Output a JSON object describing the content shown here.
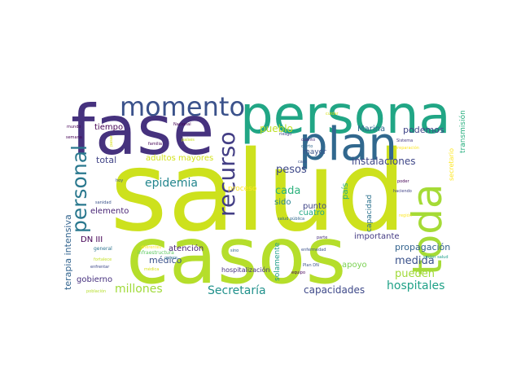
{
  "words": [
    {
      "text": "salud",
      "color": "#cde11d"
    },
    {
      "text": "casos",
      "color": "#b5de2b"
    },
    {
      "text": "fase",
      "color": "#46327e"
    },
    {
      "text": "persona",
      "color": "#21a685"
    },
    {
      "text": "plan",
      "color": "#31688e"
    },
    {
      "text": "toda",
      "color": "#a5db36"
    },
    {
      "text": "momento",
      "color": "#3b528b"
    },
    {
      "text": "recurso",
      "color": "#433e85"
    },
    {
      "text": "personal",
      "color": "#2a788e"
    },
    {
      "text": "epidemia",
      "color": "#24868e"
    },
    {
      "text": "hospitales",
      "color": "#1fa187"
    },
    {
      "text": "millones",
      "color": "#a0da39"
    },
    {
      "text": "Secretaría",
      "color": "#21918c"
    },
    {
      "text": "capacidades",
      "color": "#3e4989"
    },
    {
      "text": "medida",
      "color": "#3b528b"
    },
    {
      "text": "pueden",
      "color": "#a0da39"
    },
    {
      "text": "propagación",
      "color": "#33638d"
    },
    {
      "text": "instalaciones",
      "color": "#3f4788"
    },
    {
      "text": "pesos",
      "color": "#3e4989"
    },
    {
      "text": "cada",
      "color": "#2db27d"
    },
    {
      "text": "pueblo",
      "color": "#bddf26"
    },
    {
      "text": "podemos",
      "color": "#404588"
    },
    {
      "text": "Marina",
      "color": "#31688e"
    },
    {
      "text": "total",
      "color": "#414487"
    },
    {
      "text": "adultos mayores",
      "color": "#d2e21b"
    },
    {
      "text": "terapia intensiva",
      "color": "#32648e"
    },
    {
      "text": "tiempo",
      "color": "#440154"
    },
    {
      "text": "elemento",
      "color": "#482475"
    },
    {
      "text": "médico",
      "color": "#3b528b"
    },
    {
      "text": "atención",
      "color": "#482173"
    },
    {
      "text": "gobierno",
      "color": "#46307e"
    },
    {
      "text": "DN III",
      "color": "#440154"
    },
    {
      "text": "apoyo",
      "color": "#7ad151"
    },
    {
      "text": "importante",
      "color": "#443a83"
    },
    {
      "text": "cuatro",
      "color": "#22a884"
    },
    {
      "text": "punto",
      "color": "#404588"
    },
    {
      "text": "sido",
      "color": "#25838e"
    },
    {
      "text": "país",
      "color": "#26ad81"
    },
    {
      "text": "capacidad",
      "color": "#2c728e"
    },
    {
      "text": "proceso",
      "color": "#fde725"
    },
    {
      "text": "mayor",
      "color": "#3b528b"
    },
    {
      "text": "solamente",
      "color": "#1f9e89"
    },
    {
      "text": "hospitalización",
      "color": "#46327e"
    },
    {
      "text": "transmisión",
      "color": "#29af7f"
    },
    {
      "text": "secretario",
      "color": "#fde725"
    },
    {
      "text": "infraestructura",
      "color": "#5ec962"
    },
    {
      "text": "general",
      "color": "#2c728e"
    },
    {
      "text": "fortalece",
      "color": "#c2df23"
    },
    {
      "text": "enfrentar",
      "color": "#3e4989"
    },
    {
      "text": "población",
      "color": "#b5de2b"
    },
    {
      "text": "diferentes",
      "color": "#fde725"
    },
    {
      "text": "médica",
      "color": "#d8e219"
    },
    {
      "text": "equipo",
      "color": "#440154"
    },
    {
      "text": "Plan DN",
      "color": "#3b528b"
    },
    {
      "text": "sector salud",
      "color": "#1f9e89"
    },
    {
      "text": "enfermedad",
      "color": "#3b528b"
    },
    {
      "text": "parte",
      "color": "#472d7b"
    },
    {
      "text": "haciendo",
      "color": "#414487"
    },
    {
      "text": "poder",
      "color": "#440154"
    },
    {
      "text": "región",
      "color": "#fde725"
    },
    {
      "text": "Sistema",
      "color": "#443983"
    },
    {
      "text": "cuidar",
      "color": "#d8e219"
    },
    {
      "text": "preparación",
      "color": "#fde725"
    },
    {
      "text": "riesgo",
      "color": "#414487"
    },
    {
      "text": "casa",
      "color": "#3b528b"
    },
    {
      "text": "salud pública",
      "color": "#31688e"
    },
    {
      "text": "Nacional",
      "color": "#440154"
    },
    {
      "text": "países",
      "color": "#c8e020"
    },
    {
      "text": "familia",
      "color": "#440154"
    },
    {
      "text": "quiere",
      "color": "#2c728e"
    },
    {
      "text": "sino",
      "color": "#31688e"
    },
    {
      "text": "hoy",
      "color": "#3b528b"
    },
    {
      "text": "sanidad",
      "color": "#3b528b"
    },
    {
      "text": "mundo",
      "color": "#440154"
    },
    {
      "text": "semana",
      "color": "#440154"
    },
    {
      "text": "pasar",
      "color": "#d8e219"
    },
    {
      "text": "cuanto",
      "color": "#472d7b"
    },
    {
      "text": "cierto",
      "color": "#31688e"
    }
  ]
}
